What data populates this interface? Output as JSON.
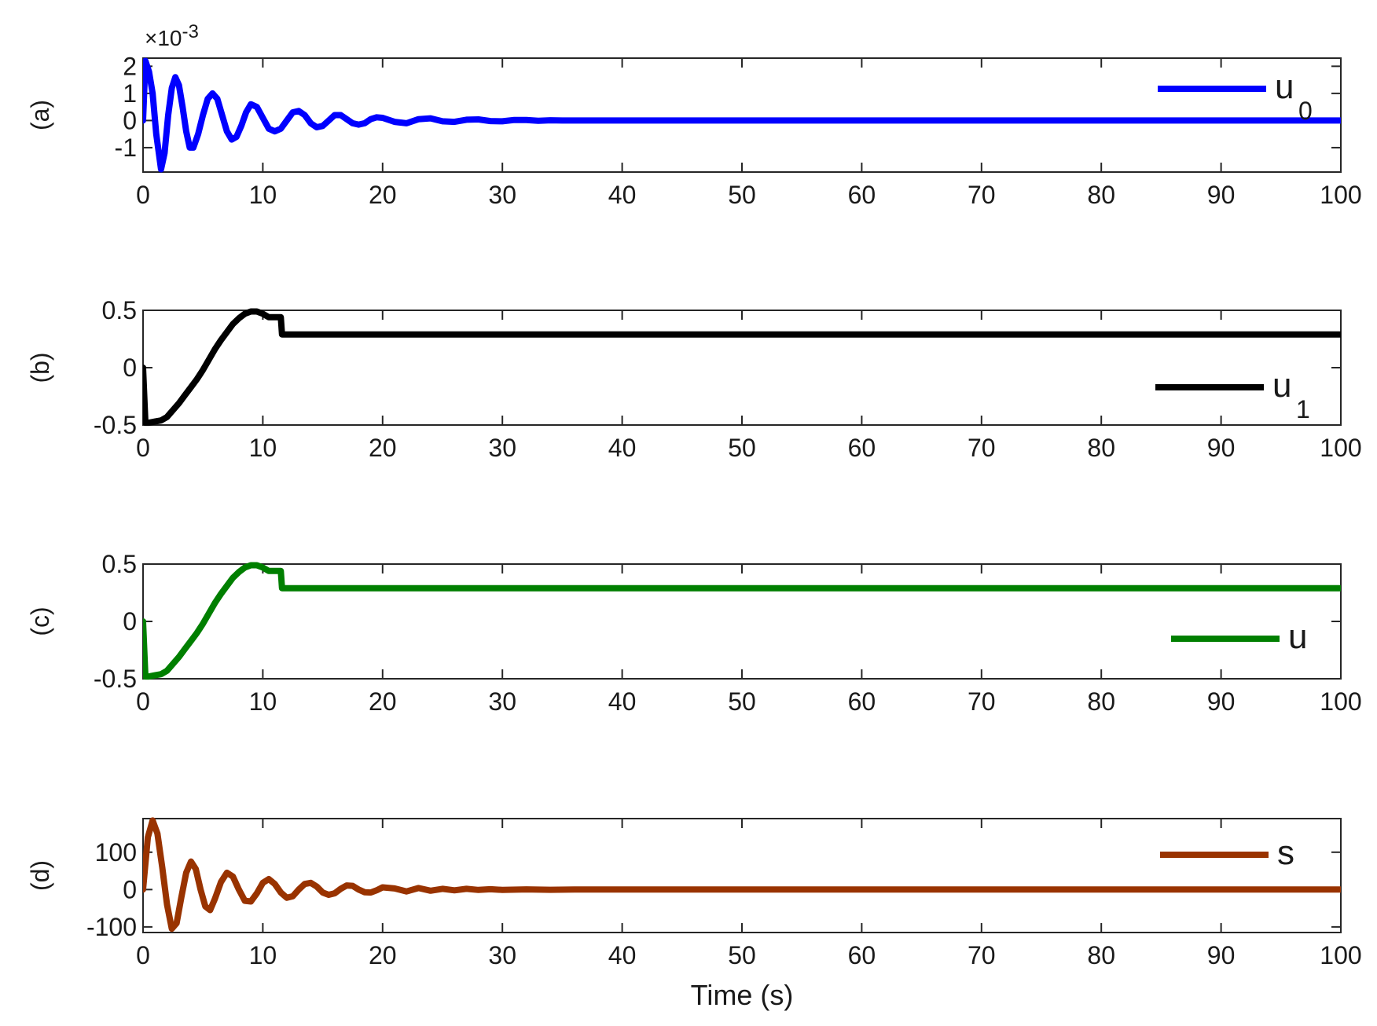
{
  "chart_data": [
    {
      "type": "line",
      "panel_label": "(a)",
      "color": "#0000ff",
      "xlim": [
        0,
        100
      ],
      "ylim": [
        -1.9,
        2.3
      ],
      "xticks": [
        0,
        10,
        20,
        30,
        40,
        50,
        60,
        70,
        80,
        90,
        100
      ],
      "xtick_labels": [
        "0",
        "10",
        "20",
        "30",
        "40",
        "50",
        "60",
        "70",
        "80",
        "90",
        "100"
      ],
      "yticks": [
        -1,
        0,
        1,
        2
      ],
      "ytick_labels": [
        "-1",
        "0",
        "1",
        "2"
      ],
      "exponent_label": "×10",
      "exponent_power": "-3",
      "legend": {
        "name": "u",
        "subscript": "0",
        "location": "top-right"
      },
      "xlabel": "",
      "series": [
        {
          "name": "u",
          "subscript": "0",
          "x": [
            0,
            0.2,
            0.5,
            0.8,
            1.1,
            1.5,
            1.8,
            2.1,
            2.4,
            2.7,
            3.0,
            3.3,
            3.6,
            3.9,
            4.2,
            4.6,
            5.0,
            5.4,
            5.8,
            6.2,
            6.6,
            7.0,
            7.4,
            7.8,
            8.2,
            8.6,
            9.0,
            9.5,
            10.0,
            10.5,
            11.0,
            11.5,
            12.0,
            12.5,
            13.0,
            13.5,
            14.0,
            14.5,
            15.0,
            15.5,
            16.0,
            16.5,
            17.0,
            17.5,
            18.0,
            18.5,
            19.0,
            19.5,
            20.0,
            21.0,
            22.0,
            23.0,
            24.0,
            25.0,
            26.0,
            27.0,
            28.0,
            29.0,
            30.0,
            31.0,
            32.0,
            33.0,
            34.0,
            35.0,
            38.0,
            40.0,
            45.0,
            50.0,
            60.0,
            70.0,
            80.0,
            90.0,
            100.0
          ],
          "y": [
            0,
            2.2,
            1.8,
            1.0,
            -0.5,
            -1.8,
            -1.2,
            0.2,
            1.2,
            1.6,
            1.3,
            0.5,
            -0.4,
            -1.0,
            -1.0,
            -0.5,
            0.2,
            0.8,
            1.0,
            0.8,
            0.2,
            -0.4,
            -0.7,
            -0.6,
            -0.2,
            0.3,
            0.6,
            0.5,
            0.1,
            -0.3,
            -0.4,
            -0.3,
            0.0,
            0.3,
            0.35,
            0.2,
            -0.1,
            -0.25,
            -0.2,
            0.0,
            0.2,
            0.2,
            0.05,
            -0.1,
            -0.15,
            -0.1,
            0.05,
            0.12,
            0.1,
            -0.05,
            -0.1,
            0.05,
            0.08,
            -0.03,
            -0.05,
            0.03,
            0.04,
            -0.02,
            -0.03,
            0.02,
            0.02,
            -0.01,
            0.01,
            0.0,
            0.0,
            0.0,
            0.0,
            0.0,
            0.0,
            0.0,
            0.0,
            0.0,
            0.0
          ]
        }
      ]
    },
    {
      "type": "line",
      "panel_label": "(b)",
      "color": "#000000",
      "xlim": [
        0,
        100
      ],
      "ylim": [
        -0.5,
        0.5
      ],
      "xticks": [
        0,
        10,
        20,
        30,
        40,
        50,
        60,
        70,
        80,
        90,
        100
      ],
      "xtick_labels": [
        "0",
        "10",
        "20",
        "30",
        "40",
        "50",
        "60",
        "70",
        "80",
        "90",
        "100"
      ],
      "yticks": [
        -0.5,
        0,
        0.5
      ],
      "ytick_labels": [
        "-0.5",
        "0",
        "0.5"
      ],
      "legend": {
        "name": "u",
        "subscript": "1",
        "location": "bottom-right"
      },
      "xlabel": "",
      "series": [
        {
          "name": "u",
          "subscript": "1",
          "x": [
            0,
            0.2,
            0.5,
            1.0,
            1.5,
            2.0,
            2.5,
            3.0,
            3.5,
            4.0,
            4.5,
            5.0,
            5.5,
            6.0,
            6.5,
            7.0,
            7.5,
            8.0,
            8.5,
            9.0,
            9.5,
            10.0,
            10.5,
            11.0,
            11.5,
            11.6,
            12.0,
            15.0,
            20.0,
            30.0,
            40.0,
            50.0,
            60.0,
            70.0,
            80.0,
            90.0,
            100.0
          ],
          "y": [
            0,
            -0.48,
            -0.48,
            -0.47,
            -0.46,
            -0.43,
            -0.37,
            -0.31,
            -0.24,
            -0.17,
            -0.1,
            -0.02,
            0.07,
            0.16,
            0.24,
            0.31,
            0.38,
            0.43,
            0.47,
            0.49,
            0.49,
            0.47,
            0.44,
            0.44,
            0.44,
            0.29,
            0.29,
            0.29,
            0.29,
            0.29,
            0.29,
            0.29,
            0.29,
            0.29,
            0.29,
            0.29,
            0.29
          ]
        }
      ]
    },
    {
      "type": "line",
      "panel_label": "(c)",
      "color": "#007f00",
      "xlim": [
        0,
        100
      ],
      "ylim": [
        -0.5,
        0.5
      ],
      "xticks": [
        0,
        10,
        20,
        30,
        40,
        50,
        60,
        70,
        80,
        90,
        100
      ],
      "xtick_labels": [
        "0",
        "10",
        "20",
        "30",
        "40",
        "50",
        "60",
        "70",
        "80",
        "90",
        "100"
      ],
      "yticks": [
        -0.5,
        0,
        0.5
      ],
      "ytick_labels": [
        "-0.5",
        "0",
        "0.5"
      ],
      "legend": {
        "name": "u",
        "subscript": "",
        "location": "bottom-right"
      },
      "xlabel": "",
      "series": [
        {
          "name": "u",
          "subscript": "",
          "x": [
            0,
            0.2,
            0.5,
            1.0,
            1.5,
            2.0,
            2.5,
            3.0,
            3.5,
            4.0,
            4.5,
            5.0,
            5.5,
            6.0,
            6.5,
            7.0,
            7.5,
            8.0,
            8.5,
            9.0,
            9.5,
            10.0,
            10.5,
            11.0,
            11.5,
            11.6,
            12.0,
            15.0,
            20.0,
            30.0,
            40.0,
            50.0,
            60.0,
            70.0,
            80.0,
            90.0,
            100.0
          ],
          "y": [
            0,
            -0.48,
            -0.48,
            -0.47,
            -0.46,
            -0.43,
            -0.37,
            -0.31,
            -0.24,
            -0.17,
            -0.1,
            -0.02,
            0.07,
            0.16,
            0.24,
            0.31,
            0.38,
            0.43,
            0.47,
            0.49,
            0.49,
            0.47,
            0.44,
            0.44,
            0.44,
            0.29,
            0.29,
            0.29,
            0.29,
            0.29,
            0.29,
            0.29,
            0.29,
            0.29,
            0.29,
            0.29,
            0.29
          ]
        }
      ]
    },
    {
      "type": "line",
      "panel_label": "(d)",
      "color": "#993300",
      "xlim": [
        0,
        100
      ],
      "ylim": [
        -115,
        190
      ],
      "xticks": [
        0,
        10,
        20,
        30,
        40,
        50,
        60,
        70,
        80,
        90,
        100
      ],
      "xtick_labels": [
        "0",
        "10",
        "20",
        "30",
        "40",
        "50",
        "60",
        "70",
        "80",
        "90",
        "100"
      ],
      "yticks": [
        -100,
        0,
        100
      ],
      "ytick_labels": [
        "-100",
        "0",
        "100"
      ],
      "legend": {
        "name": "s",
        "subscript": "",
        "location": "top-right"
      },
      "xlabel": "Time (s)",
      "series": [
        {
          "name": "s",
          "subscript": "",
          "x": [
            0,
            0.4,
            0.8,
            1.2,
            1.6,
            2.0,
            2.4,
            2.8,
            3.2,
            3.6,
            4.0,
            4.4,
            4.8,
            5.2,
            5.6,
            6.0,
            6.5,
            7.0,
            7.5,
            8.0,
            8.5,
            9.0,
            9.5,
            10.0,
            10.5,
            11.0,
            11.5,
            12.0,
            12.5,
            13.0,
            13.5,
            14.0,
            14.5,
            15.0,
            15.5,
            16.0,
            16.5,
            17.0,
            17.5,
            18.0,
            18.5,
            19.0,
            19.5,
            20.0,
            21.0,
            22.0,
            23.0,
            24.0,
            25.0,
            26.0,
            27.0,
            28.0,
            29.0,
            30.0,
            32.0,
            34.0,
            36.0,
            40.0,
            45.0,
            50.0,
            60.0,
            70.0,
            80.0,
            90.0,
            100.0
          ],
          "y": [
            0,
            140,
            185,
            150,
            60,
            -40,
            -105,
            -90,
            -20,
            45,
            75,
            55,
            0,
            -45,
            -55,
            -25,
            20,
            45,
            35,
            0,
            -30,
            -32,
            -10,
            18,
            28,
            15,
            -8,
            -22,
            -18,
            0,
            15,
            18,
            8,
            -8,
            -14,
            -10,
            2,
            11,
            10,
            0,
            -7,
            -8,
            -2,
            6,
            3,
            -5,
            4,
            -3,
            2,
            -2,
            2,
            -1,
            1,
            -1,
            0.5,
            -0.5,
            0.3,
            0,
            0,
            0,
            0,
            0,
            0,
            0,
            0
          ]
        }
      ]
    }
  ]
}
